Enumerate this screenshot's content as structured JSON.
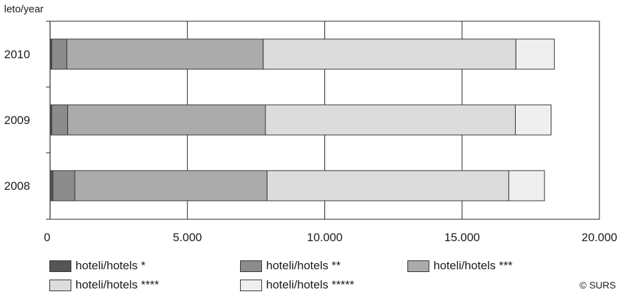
{
  "chart_data": {
    "type": "bar",
    "orientation": "horizontal",
    "stacked": true,
    "ylabel": "leto/year",
    "categories": [
      "2010",
      "2009",
      "2008"
    ],
    "x_ticks": [
      "0",
      "5.000",
      "10.000",
      "15.000",
      "20.000"
    ],
    "xlim": [
      0,
      20000
    ],
    "grid": "vertical",
    "legend_position": "bottom",
    "series": [
      {
        "name": "hoteli/hotels *",
        "color": "#555555",
        "values": [
          60,
          60,
          100
        ]
      },
      {
        "name": "hoteli/hotels **",
        "color": "#8c8c8c",
        "values": [
          550,
          580,
          800
        ]
      },
      {
        "name": "hoteli/hotels ***",
        "color": "#ababab",
        "values": [
          7150,
          7200,
          7000
        ]
      },
      {
        "name": "hoteli/hotels ****",
        "color": "#dcdcdc",
        "values": [
          9200,
          9100,
          8800
        ]
      },
      {
        "name": "hoteli/hotels *****",
        "color": "#efefef",
        "values": [
          1400,
          1300,
          1300
        ]
      }
    ]
  },
  "footer": {
    "copyright": "© SURS"
  }
}
